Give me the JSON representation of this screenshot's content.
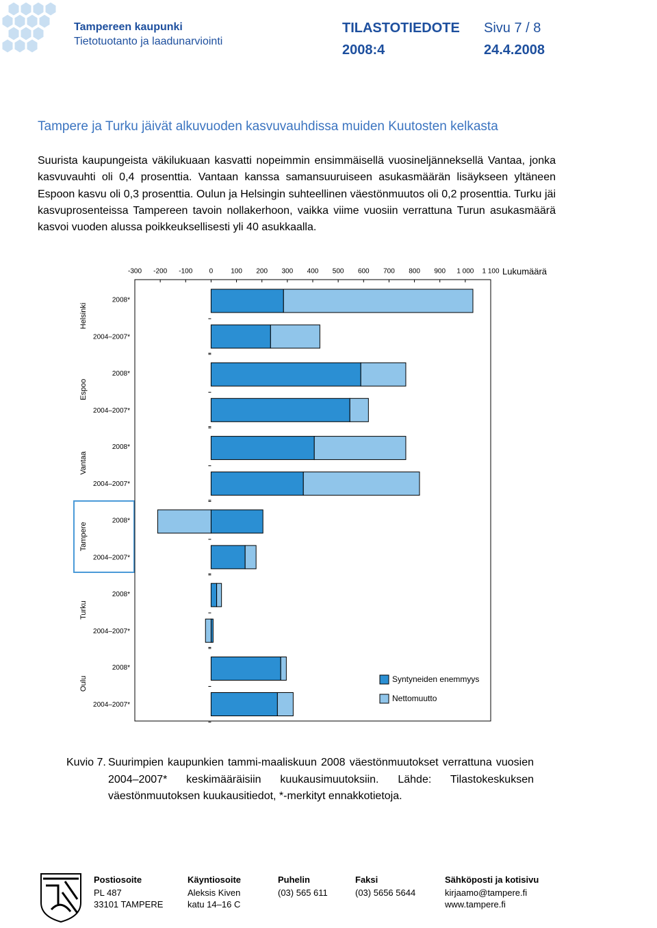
{
  "header": {
    "org": "Tampereen kaupunki",
    "unit": "Tietotuotanto ja laadunarviointi",
    "doc_type": "TILASTOTIEDOTE",
    "page": "Sivu 7 / 8",
    "issue": "2008:4",
    "date": "24.4.2008"
  },
  "title": "Tampere ja Turku jäivät alkuvuoden kasvuvauhdissa muiden Kuutosten kelkasta",
  "body": "Suurista kaupungeista väkilukuaan kasvatti nopeimmin ensimmäisellä vuosineljänneksellä Vantaa, jonka kasvuvauhti oli 0,4 prosenttia. Vantaan kanssa samansuuruiseen asukasmäärän lisäykseen yltäneen Espoon kasvu oli 0,3 prosenttia. Oulun ja Helsingin suhteellinen väestönmuutos oli 0,2 prosenttia. Turku jäi kasvuprosenteissa Tampereen tavoin nollakerhoon, vaikka viime vuosiin verrattuna Turun asukasmäärä kasvoi vuoden alussa poikkeuksellisesti yli 40 asukkaalla.",
  "chart_data": {
    "type": "bar",
    "orientation": "horizontal",
    "stacked": true,
    "xlabel": "Lukumäärä",
    "groups": [
      "Helsinki",
      "Espoo",
      "Vantaa",
      "Tampere",
      "Turku",
      "Oulu"
    ],
    "categories": [
      "2008*",
      "2004–2007*",
      "2008*",
      "2004–2007*",
      "2008*",
      "2004–2007*",
      "2008*",
      "2004–2007*",
      "2008*",
      "2004–2007*",
      "2008*",
      "2004–2007*"
    ],
    "series": [
      {
        "name": "Syntyneiden enemmyys",
        "color": "#2b8fd3",
        "values": [
          285,
          234,
          589,
          546,
          406,
          363,
          204,
          134,
          22,
          8,
          274,
          261
        ]
      },
      {
        "name": "Nettomuutto",
        "color": "#90c5ea",
        "values": [
          745,
          194,
          177,
          73,
          360,
          457,
          -210,
          43,
          19,
          -22,
          22,
          62
        ]
      }
    ],
    "xlim": [
      -300,
      1100
    ],
    "xticks": [
      -300,
      -200,
      -100,
      0,
      100,
      200,
      300,
      400,
      500,
      600,
      700,
      800,
      900,
      {
        "value": 1000,
        "label": "1 000"
      },
      {
        "value": 1100,
        "label": "1 100"
      }
    ],
    "legend": "bottom-right"
  },
  "caption": {
    "label": "Kuvio 7.",
    "text": "Suurimpien kaupunkien tammi-maaliskuun 2008 väestönmuutokset verrattuna vuosien 2004–2007* keskimääräisiin kuukausimuutoksiin. Lähde: Tilastokeskuksen väestönmuutoksen kuukausitiedot, *-merkityt ennakkotietoja."
  },
  "footer": {
    "columns": [
      {
        "heading": "Postiosoite",
        "lines": [
          "PL 487",
          "33101 TAMPERE"
        ]
      },
      {
        "heading": "Käyntiosoite",
        "lines": [
          "Aleksis Kiven",
          "katu 14–16 C"
        ]
      },
      {
        "heading": "Puhelin",
        "lines": [
          "(03) 565 611"
        ]
      },
      {
        "heading": "Faksi",
        "lines": [
          "(03) 5656 5644"
        ]
      },
      {
        "heading": "Sähköposti ja kotisivu",
        "lines": [
          "kirjaamo@tampere.fi",
          "www.tampere.fi"
        ]
      }
    ]
  }
}
